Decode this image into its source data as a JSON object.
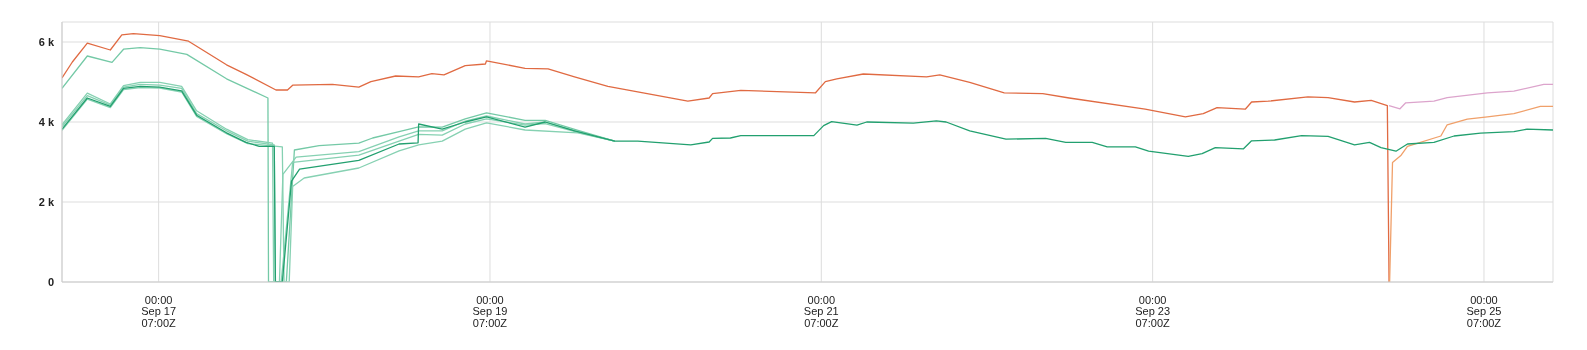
{
  "chart_data": {
    "type": "line",
    "xlim": [
      "--09-16T10:00",
      "--09-25T10:00"
    ],
    "xticks": [
      {
        "value": "--09-17T00:00",
        "label": "00:00\nSep 17\n07:00Z"
      },
      {
        "value": "--09-19T00:00",
        "label": "00:00\nSep 19\n07:00Z"
      },
      {
        "value": "--09-21T00:00",
        "label": "00:00\nSep 21\n07:00Z"
      },
      {
        "value": "--09-23T00:00",
        "label": "00:00\nSep 23\n07:00Z"
      },
      {
        "value": "--09-25T00:00",
        "label": "00:00\nSep 25\n07:00Z"
      }
    ],
    "ylim": [
      0,
      6500
    ],
    "yticks": [
      0,
      {
        "value": 2000,
        "label": "2 k"
      },
      {
        "value": 4000,
        "label": "4 k"
      },
      {
        "value": 6000,
        "label": "6 k"
      }
    ],
    "grid": true,
    "marker": "none",
    "line_style": "solid",
    "series": [
      {
        "color": "#e06a42",
        "x": [
          "--09-16T10:00",
          "--09-16T11:30",
          "--09-16T13:40",
          "--09-16T17:00",
          "--09-16T18:40",
          "--09-16T20:20",
          "--09-17T00:10",
          "--09-17T04:20",
          "--09-17T09:50",
          "--09-17T12:40",
          "--09-17T17:00",
          "--09-17T18:40",
          "--09-17T19:25",
          "--09-18T01:10",
          "--09-18T05:00",
          "--09-18T06:45",
          "--09-18T10:20",
          "--09-18T13:40",
          "--09-18T15:35",
          "--09-18T17:20",
          "--09-18T20:25",
          "--09-18T23:20",
          "--09-18T23:30",
          "--09-19T05:05",
          "--09-19T08:25",
          "--09-19T12:15",
          "--09-19T17:05",
          "--09-20T04:40",
          "--09-20T07:45",
          "--09-20T08:15",
          "--09-20T12:20",
          "--09-20T23:10",
          "--09-21T00:35",
          "--09-21T02:15",
          "--09-21T06:05",
          "--09-21T15:15",
          "--09-21T17:10",
          "--09-21T21:30",
          "--09-22T02:30",
          "--09-22T08:05",
          "--09-22T11:55",
          "--09-22T22:55",
          "--09-23T04:45",
          "--09-23T07:20",
          "--09-23T09:20",
          "--09-23T13:25",
          "--09-23T14:20",
          "--09-23T16:45",
          "--09-23T22:30",
          "--09-24T01:25",
          "--09-24T05:15",
          "--09-24T07:40",
          "--09-24T10:00",
          "--09-24T10:15"
        ],
        "values": [
          5100,
          5500,
          5970,
          5800,
          6180,
          6210,
          6160,
          6020,
          5430,
          5190,
          4800,
          4800,
          4920,
          4940,
          4870,
          5010,
          5150,
          5130,
          5210,
          5180,
          5410,
          5450,
          5530,
          5340,
          5330,
          5130,
          4890,
          4520,
          4600,
          4710,
          4790,
          4730,
          5010,
          5080,
          5200,
          5130,
          5180,
          4990,
          4730,
          4710,
          4600,
          4320,
          4130,
          4210,
          4360,
          4320,
          4500,
          4520,
          4630,
          4610,
          4500,
          4540,
          4410,
          0
        ]
      },
      {
        "color": "#dca4cc",
        "x": [
          "--09-24T10:15",
          "--09-24T11:50",
          "--09-24T12:40",
          "--09-24T16:45",
          "--09-24T18:40",
          "--09-25T00:30",
          "--09-25T04:20",
          "--09-25T08:40",
          "--09-25T10:00"
        ],
        "values": [
          4410,
          4330,
          4480,
          4520,
          4610,
          4730,
          4770,
          4940,
          4940
        ]
      },
      {
        "color": "#f0a06a",
        "x": [
          "--09-24T10:20",
          "--09-24T10:45",
          "--09-24T12:00",
          "--09-24T12:55",
          "--09-24T17:45",
          "--09-24T18:40",
          "--09-24T21:35",
          "--09-25T00:30",
          "--09-25T04:20",
          "--09-25T08:10",
          "--09-25T10:00"
        ],
        "values": [
          0,
          2990,
          3170,
          3390,
          3650,
          3930,
          4070,
          4130,
          4210,
          4390,
          4390
        ]
      },
      {
        "color": "#74c9a6",
        "x": [
          "--09-16T10:00",
          "--09-16T13:40",
          "--09-16T17:15",
          "--09-16T18:55",
          "--09-16T21:20",
          "--09-17T00:10",
          "--09-17T04:05",
          "--09-17T09:50",
          "--09-17T15:50",
          "--09-17T15:55",
          "--09-17T18:30",
          "--09-17T19:40",
          "--09-17T23:15",
          "--09-18T05:00",
          "--09-18T07:00",
          "--09-18T10:50",
          "--09-18T13:40",
          "--09-18T17:05",
          "--09-18T20:25",
          "--09-18T23:30",
          "--09-19T05:05",
          "--09-19T08:00",
          "--09-19T12:45",
          "--09-19T18:05"
        ],
        "values": [
          4840,
          5650,
          5490,
          5820,
          5860,
          5820,
          5690,
          5080,
          4600,
          0,
          0,
          3300,
          3410,
          3470,
          3600,
          3760,
          3880,
          3870,
          4080,
          4230,
          4040,
          4040,
          3790,
          3520
        ]
      },
      {
        "color": "#86d1b2",
        "x": [
          "--09-16T10:00",
          "--09-16T13:40",
          "--09-16T17:00",
          "--09-16T18:55",
          "--09-16T21:20",
          "--09-17T00:10",
          "--09-17T03:20",
          "--09-17T05:30",
          "--09-17T09:50",
          "--09-17T12:55",
          "--09-17T16:30",
          "--09-17T16:40",
          "--09-17T17:30",
          "--09-17T18:00",
          "--09-17T19:55",
          "--09-18T05:00",
          "--09-18T10:50",
          "--09-18T13:40",
          "--09-18T17:05",
          "--09-18T20:25",
          "--09-18T23:30",
          "--09-19T05:05",
          "--09-19T08:00",
          "--09-19T12:45",
          "--09-19T18:05"
        ],
        "values": [
          3930,
          4720,
          4450,
          4910,
          4990,
          4990,
          4890,
          4280,
          3820,
          3560,
          3470,
          0,
          0,
          2690,
          3120,
          3260,
          3630,
          3780,
          3780,
          4020,
          4150,
          3950,
          4000,
          3760,
          3520
        ]
      },
      {
        "color": "#86d1b2",
        "x": [
          "--09-16T10:00",
          "--09-16T13:40",
          "--09-16T17:00",
          "--09-16T18:55",
          "--09-16T21:20",
          "--09-17T00:10",
          "--09-17T03:20",
          "--09-17T05:30",
          "--09-17T09:50",
          "--09-17T12:55",
          "--09-17T16:45",
          "--09-17T16:55",
          "--09-17T17:45",
          "--09-17T19:25",
          "--09-18T05:00",
          "--09-18T10:50",
          "--09-18T13:40",
          "--09-18T17:05",
          "--09-18T20:25",
          "--09-18T23:30",
          "--09-19T05:05",
          "--09-19T08:00",
          "--09-19T12:45",
          "--09-19T18:05"
        ],
        "values": [
          3880,
          4660,
          4420,
          4870,
          4940,
          4920,
          4840,
          4210,
          3780,
          3520,
          3430,
          0,
          0,
          2990,
          3170,
          3520,
          3690,
          3670,
          3950,
          4080,
          3920,
          3960,
          3740,
          3520
        ]
      },
      {
        "color": "#86d1b2",
        "x": [
          "--09-16T10:00",
          "--09-16T13:40",
          "--09-16T17:00",
          "--09-16T18:55",
          "--09-16T21:20",
          "--09-17T00:10",
          "--09-17T03:20",
          "--09-17T05:30",
          "--09-17T09:50",
          "--09-17T12:55",
          "--09-17T17:55",
          "--09-17T18:10",
          "--09-17T18:55",
          "--09-17T19:25",
          "--09-17T21:05",
          "--09-18T05:00",
          "--09-18T10:50",
          "--09-18T13:40",
          "--09-18T17:05",
          "--09-18T20:25",
          "--09-18T23:30",
          "--09-19T05:05",
          "--09-19T12:45",
          "--09-19T18:05"
        ],
        "values": [
          3790,
          4570,
          4360,
          4810,
          4860,
          4850,
          4750,
          4140,
          3710,
          3460,
          3380,
          0,
          0,
          2390,
          2600,
          2850,
          3280,
          3430,
          3520,
          3820,
          3980,
          3800,
          3730,
          3520
        ]
      },
      {
        "color": "#22a06f",
        "x": [
          "--09-16T10:00",
          "--09-16T13:40",
          "--09-16T17:00",
          "--09-16T18:55",
          "--09-16T21:20",
          "--09-17T00:10",
          "--09-17T03:20",
          "--09-17T05:30",
          "--09-17T09:50",
          "--09-17T12:40",
          "--09-17T14:35",
          "--09-17T16:45",
          "--09-17T16:55",
          "--09-17T17:55",
          "--09-17T19:15",
          "--09-17T20:25",
          "--09-18T05:00",
          "--09-18T10:50",
          "--09-18T13:35",
          "--09-18T13:40",
          "--09-18T17:05",
          "--09-18T20:25",
          "--09-18T23:30",
          "--09-19T05:05",
          "--09-19T08:00",
          "--09-19T12:15",
          "--09-19T18:05",
          "--09-19T21:25",
          "--09-20T05:05",
          "--09-20T07:45",
          "--09-20T08:15",
          "--09-20T10:50",
          "--09-20T12:20",
          "--09-20T22:55",
          "--09-21T00:20",
          "--09-21T01:30",
          "--09-21T05:10",
          "--09-21T06:35",
          "--09-21T13:20",
          "--09-21T16:40",
          "--09-21T18:05",
          "--09-21T21:30",
          "--09-22T02:45",
          "--09-22T08:30",
          "--09-22T11:25",
          "--09-22T15:15",
          "--09-22T17:25",
          "--09-22T21:30",
          "--09-22T23:25",
          "--09-23T05:10",
          "--09-23T07:10",
          "--09-23T09:05",
          "--09-23T13:10",
          "--09-23T14:20",
          "--09-23T17:40",
          "--09-23T21:35",
          "--09-24T01:25",
          "--09-24T05:15",
          "--09-24T07:25",
          "--09-24T09:05",
          "--09-24T11:15",
          "--09-24T12:55",
          "--09-24T16:45",
          "--09-24T19:40",
          "--09-24T23:30",
          "--09-25T04:20",
          "--09-25T06:15",
          "--09-25T10:00"
        ],
        "values": [
          3820,
          4600,
          4390,
          4840,
          4890,
          4870,
          4780,
          4170,
          3730,
          3490,
          3390,
          3390,
          0,
          0,
          2520,
          2820,
          3040,
          3450,
          3480,
          3950,
          3820,
          4000,
          4130,
          3870,
          4000,
          3780,
          3520,
          3520,
          3430,
          3500,
          3590,
          3600,
          3660,
          3660,
          3910,
          4010,
          3920,
          4000,
          3970,
          4030,
          4000,
          3780,
          3570,
          3590,
          3490,
          3490,
          3380,
          3380,
          3270,
          3140,
          3210,
          3360,
          3330,
          3530,
          3550,
          3660,
          3640,
          3430,
          3490,
          3360,
          3270,
          3450,
          3490,
          3650,
          3720,
          3760,
          3820,
          3800
        ]
      }
    ]
  }
}
